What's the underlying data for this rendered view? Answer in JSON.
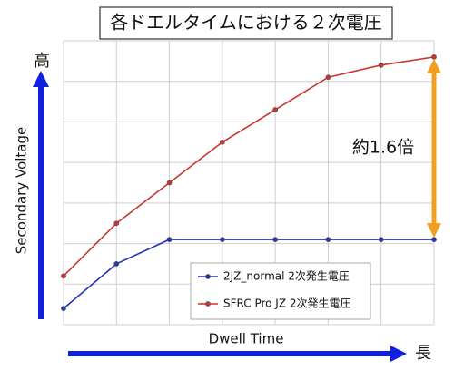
{
  "chart_data": {
    "type": "line",
    "title": "各ドエルタイムにおける２次電圧",
    "x_label": "Dwell Time",
    "y_label": "Secondary Voltage",
    "y_high": "高",
    "x_long": "長",
    "annotation": "約1.6倍",
    "categories": [
      null,
      null,
      null,
      null,
      null,
      null,
      null,
      null
    ],
    "series": [
      {
        "name": "2JZ_normal 2次発生電圧",
        "color": "#2436b0",
        "values": [
          0.4,
          1.5,
          2.1,
          2.1,
          2.1,
          2.1,
          2.1,
          2.1
        ]
      },
      {
        "name": "SFRC Pro JZ 2次発生電圧",
        "color": "#c8352f",
        "values": [
          1.2,
          2.5,
          3.5,
          4.5,
          5.3,
          6.1,
          6.4,
          6.6
        ]
      }
    ],
    "ylim": [
      0,
      7
    ],
    "yticks": [
      0,
      1,
      2,
      3,
      4,
      5,
      6,
      7
    ],
    "grid": true,
    "legend": "lower center",
    "axis_arrow_color": "#1020e0",
    "annotation_arrow_color": "#f0a020"
  }
}
